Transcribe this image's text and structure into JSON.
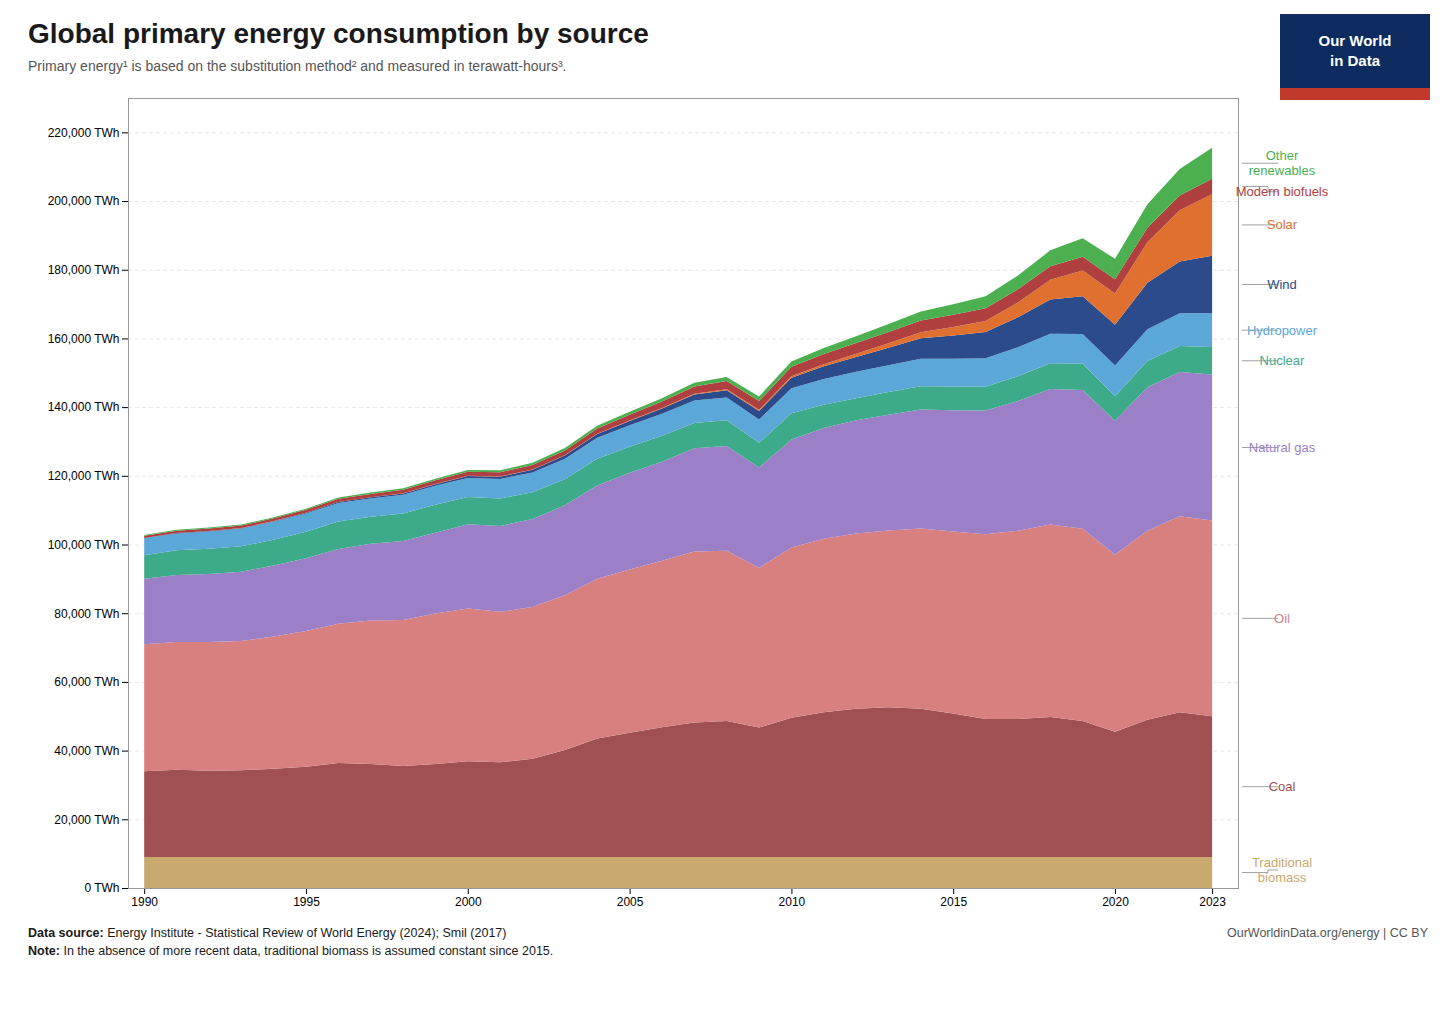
{
  "chart_data": {
    "type": "area",
    "stacked": true,
    "title": "Global primary energy consumption by source",
    "subtitle": "Primary energy¹ is based on the substitution method² and measured in terawatt-hours³.",
    "footnotes": [
      {
        "bold": "Data source:",
        "text": " Energy Institute - Statistical Review of World Energy (2024); Smil (2017)"
      },
      {
        "bold": "Note:",
        "text": " In the absence of more recent data, traditional biomass is assumed constant since 2015."
      }
    ],
    "source": "OurWorldinData.org/energy | CC BY",
    "logo_text": [
      "Our World",
      "in Data"
    ],
    "logo_color": "#0D2B5E",
    "logo_accent_color": "#C0392B",
    "x": [
      1990,
      1991,
      1992,
      1993,
      1994,
      1995,
      1996,
      1997,
      1998,
      1999,
      2000,
      2001,
      2002,
      2003,
      2004,
      2005,
      2006,
      2007,
      2008,
      2009,
      2010,
      2011,
      2012,
      2013,
      2014,
      2015,
      2016,
      2017,
      2018,
      2019,
      2020,
      2021,
      2022,
      2023
    ],
    "series": [
      {
        "name": "Traditional\nbiomass",
        "color": "#C8A96E",
        "values": [
          9000,
          9000,
          9000,
          9000,
          9000,
          9000,
          9000,
          9000,
          9000,
          9000,
          9000,
          9000,
          9000,
          9000,
          9000,
          9000,
          9000,
          9000,
          9000,
          9000,
          9000,
          9000,
          9000,
          9000,
          9000,
          9000,
          9000,
          9000,
          9000,
          9000,
          9000,
          9000,
          9000,
          9000
        ]
      },
      {
        "name": "Coal",
        "color": "#A05050",
        "values": [
          25000,
          25400,
          25100,
          25300,
          25700,
          26300,
          27400,
          27100,
          26500,
          27100,
          27900,
          27600,
          28600,
          31200,
          34500,
          36200,
          37800,
          39200,
          39600,
          37700,
          40600,
          42200,
          43200,
          43600,
          43200,
          41800,
          40200,
          40200,
          40800,
          39600,
          36500,
          40000,
          42200,
          41000
        ]
      },
      {
        "name": "Oil",
        "color": "#D88080",
        "values": [
          37000,
          37200,
          37500,
          37600,
          38500,
          39500,
          40500,
          41800,
          42500,
          43800,
          44500,
          43800,
          44200,
          45000,
          46500,
          47500,
          48500,
          49800,
          49600,
          46500,
          49500,
          50500,
          51000,
          51500,
          52500,
          53000,
          53800,
          54800,
          56000,
          56000,
          51500,
          55000,
          57000,
          57000
        ]
      },
      {
        "name": "Natural gas",
        "color": "#9B80C8",
        "values": [
          19000,
          19500,
          19800,
          20200,
          20700,
          21200,
          21800,
          22300,
          23000,
          23500,
          24500,
          25000,
          25600,
          26200,
          27200,
          28200,
          28800,
          30000,
          30500,
          29200,
          31500,
          32200,
          33000,
          33700,
          34600,
          35300,
          36000,
          37800,
          39500,
          40400,
          39000,
          41800,
          42000,
          42500
        ]
      },
      {
        "name": "Nuclear",
        "color": "#3DAA8A",
        "values": [
          6900,
          7200,
          7400,
          7400,
          7500,
          7700,
          8000,
          7900,
          8000,
          8200,
          7900,
          8000,
          7800,
          7600,
          7800,
          7600,
          7600,
          7400,
          7500,
          7200,
          7600,
          6800,
          6400,
          6600,
          6800,
          6900,
          6900,
          7200,
          7500,
          7600,
          7200,
          7600,
          7600,
          8000
        ]
      },
      {
        "name": "Hydropower",
        "color": "#5BA8D8",
        "values": [
          4900,
          4900,
          5000,
          5100,
          5200,
          5300,
          5400,
          5300,
          5500,
          5500,
          5600,
          5700,
          5800,
          6000,
          6100,
          6200,
          6400,
          6500,
          6600,
          6800,
          7300,
          7500,
          7700,
          7800,
          8000,
          8100,
          8300,
          8400,
          8600,
          8700,
          8900,
          9300,
          9500,
          9800
        ]
      },
      {
        "name": "Wind",
        "color": "#2C4B8B",
        "values": [
          100,
          120,
          140,
          160,
          200,
          230,
          280,
          330,
          390,
          460,
          560,
          650,
          760,
          890,
          1060,
          1250,
          1490,
          1800,
          2140,
          2480,
          3050,
          3670,
          4320,
          5100,
          5940,
          6790,
          7700,
          8800,
          9900,
          11000,
          11900,
          13500,
          15100,
          16800
        ]
      },
      {
        "name": "Solar",
        "color": "#E07030",
        "values": [
          10,
          12,
          14,
          17,
          20,
          24,
          28,
          34,
          41,
          50,
          61,
          70,
          83,
          99,
          118,
          143,
          174,
          211,
          262,
          326,
          432,
          620,
          890,
          1270,
          1740,
          2440,
          3200,
          4280,
          5750,
          7450,
          9100,
          11800,
          14900,
          17900
        ]
      },
      {
        "name": "Modern biofuels",
        "color": "#B04040",
        "values": [
          650,
          700,
          730,
          760,
          800,
          850,
          900,
          960,
          1010,
          1080,
          1150,
          1210,
          1290,
          1390,
          1510,
          1660,
          1870,
          2100,
          2380,
          2560,
          2780,
          2980,
          3160,
          3330,
          3470,
          3600,
          3710,
          3820,
          3940,
          4040,
          4100,
          4200,
          4350,
          4500
        ]
      },
      {
        "name": "Other\nrenewables",
        "color": "#4CAF50",
        "values": [
          230,
          240,
          260,
          280,
          300,
          320,
          360,
          400,
          440,
          490,
          560,
          610,
          660,
          720,
          790,
          870,
          960,
          1080,
          1200,
          1330,
          1510,
          1730,
          1980,
          2270,
          2620,
          3010,
          3450,
          4000,
          4660,
          5350,
          5980,
          6900,
          7700,
          9000
        ]
      }
    ],
    "xlim": [
      1989.5,
      2023.8
    ],
    "xticks": [
      1990,
      1995,
      2000,
      2005,
      2010,
      2015,
      2020,
      2023
    ],
    "ylim": [
      0,
      230000
    ],
    "yticks": [
      {
        "value": 0,
        "label": "0 TWh"
      },
      {
        "value": 20000,
        "label": "20,000 TWh"
      },
      {
        "value": 40000,
        "label": "40,000 TWh"
      },
      {
        "value": 60000,
        "label": "60,000 TWh"
      },
      {
        "value": 80000,
        "label": "80,000 TWh"
      },
      {
        "value": 100000,
        "label": "100,000 TWh"
      },
      {
        "value": 120000,
        "label": "120,000 TWh"
      },
      {
        "value": 140000,
        "label": "140,000 TWh"
      },
      {
        "value": 160000,
        "label": "160,000 TWh"
      },
      {
        "value": 180000,
        "label": "180,000 TWh"
      },
      {
        "value": 200000,
        "label": "200,000 TWh"
      },
      {
        "value": 220000,
        "label": "220,000 TWh"
      }
    ],
    "grid": true,
    "legend": "right"
  }
}
